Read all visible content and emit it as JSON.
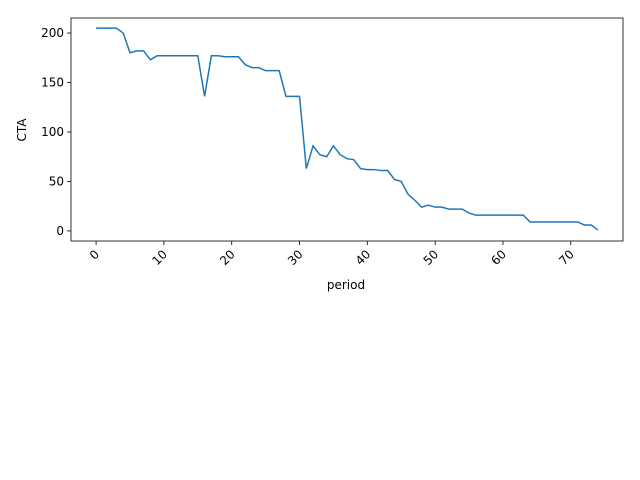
{
  "chart_data": {
    "type": "line",
    "xlabel": "period",
    "ylabel": "CTA",
    "xlim": [
      -3.7,
      77.7
    ],
    "ylim": [
      -10.2,
      215.2
    ],
    "xticks": [
      0,
      10,
      20,
      30,
      40,
      50,
      60,
      70
    ],
    "yticks": [
      0,
      50,
      100,
      150,
      200
    ],
    "grid": false,
    "series": [
      {
        "color": "#1f77b4",
        "x": [
          0,
          1,
          2,
          3,
          4,
          5,
          6,
          7,
          8,
          9,
          10,
          11,
          12,
          13,
          14,
          15,
          16,
          17,
          18,
          19,
          20,
          21,
          22,
          23,
          24,
          25,
          26,
          27,
          28,
          29,
          30,
          31,
          32,
          33,
          34,
          35,
          36,
          37,
          38,
          39,
          40,
          41,
          42,
          43,
          44,
          45,
          46,
          47,
          48,
          49,
          50,
          51,
          52,
          53,
          54,
          55,
          56,
          57,
          58,
          59,
          60,
          61,
          62,
          63,
          64,
          65,
          66,
          67,
          68,
          69,
          70,
          71,
          72,
          73,
          74
        ],
        "values": [
          205,
          205,
          205,
          205,
          200,
          180,
          182,
          182,
          173,
          177,
          177,
          177,
          177,
          177,
          177,
          177,
          136,
          177,
          177,
          176,
          176,
          176,
          168,
          165,
          165,
          162,
          162,
          162,
          136,
          136,
          136,
          63,
          86,
          77,
          75,
          86,
          77,
          73,
          72,
          63,
          62,
          62,
          61,
          61,
          52,
          50,
          37,
          31,
          24,
          26,
          24,
          24,
          22,
          22,
          22,
          18,
          16,
          16,
          16,
          16,
          16,
          16,
          16,
          16,
          9,
          9,
          9,
          9,
          9,
          9,
          9,
          9,
          6,
          6,
          1
        ]
      }
    ]
  }
}
